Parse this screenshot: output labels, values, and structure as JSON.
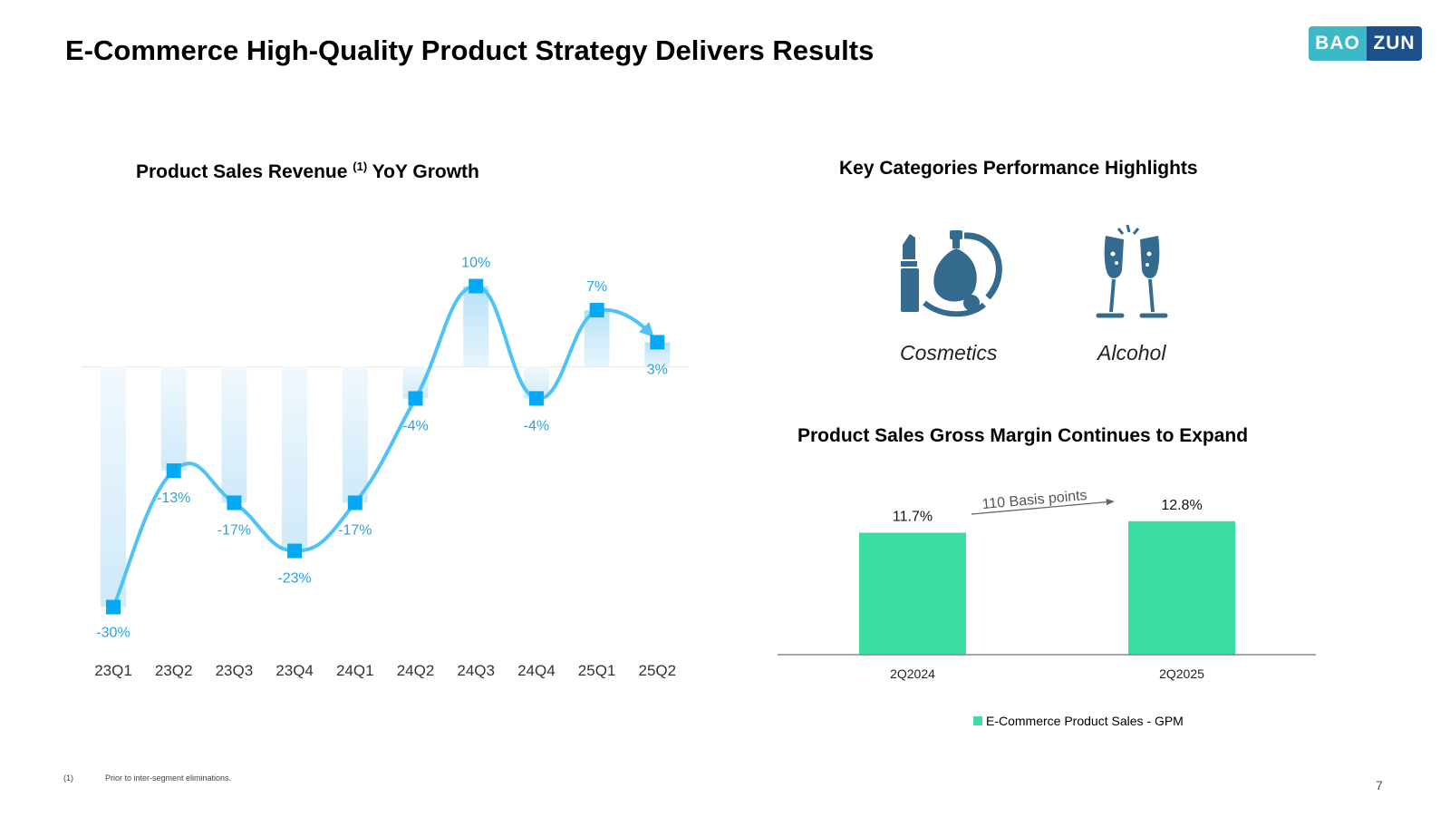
{
  "header": {
    "title": "E-Commerce High-Quality Product Strategy Delivers Results",
    "logo_left": "BAO",
    "logo_right": "ZUN"
  },
  "colors": {
    "line": "#4fc3f7",
    "marker": "#03a9f4",
    "label": "#29a3e3",
    "margin_bar": "#3ddca3",
    "icon": "#356a8f"
  },
  "chart_data": [
    {
      "type": "line",
      "title": "Product Sales Revenue",
      "title_sup": "(1)",
      "title_suffix": "YoY Growth",
      "categories": [
        "23Q1",
        "23Q2",
        "23Q3",
        "23Q4",
        "24Q1",
        "24Q2",
        "24Q3",
        "24Q4",
        "25Q1",
        "25Q2"
      ],
      "values": [
        -30,
        -13,
        -17,
        -23,
        -17,
        -4,
        10,
        -4,
        7,
        3
      ],
      "labels": [
        "-30%",
        "-13%",
        "-17%",
        "-23%",
        "-17%",
        "-4%",
        "10%",
        "-4%",
        "7%",
        "3%"
      ],
      "ylim": [
        -30,
        10
      ],
      "xlabel": "",
      "ylabel": ""
    },
    {
      "type": "bar",
      "title": "Product Sales Gross Margin Continues to Expand",
      "categories": [
        "2Q2024",
        "2Q2025"
      ],
      "values": [
        11.7,
        12.8
      ],
      "labels": [
        "11.7%",
        "12.8%"
      ],
      "annotation": "110 Basis points",
      "legend": "E-Commerce Product Sales - GPM"
    }
  ],
  "highlights": {
    "title": "Key Categories Performance Highlights",
    "items": [
      {
        "label": "Cosmetics",
        "icon": "cosmetics-icon"
      },
      {
        "label": "Alcohol",
        "icon": "champagne-icon"
      }
    ]
  },
  "footer": {
    "note_num": "(1)",
    "note_text": "Prior to inter-segment eliminations.",
    "page": "7"
  }
}
